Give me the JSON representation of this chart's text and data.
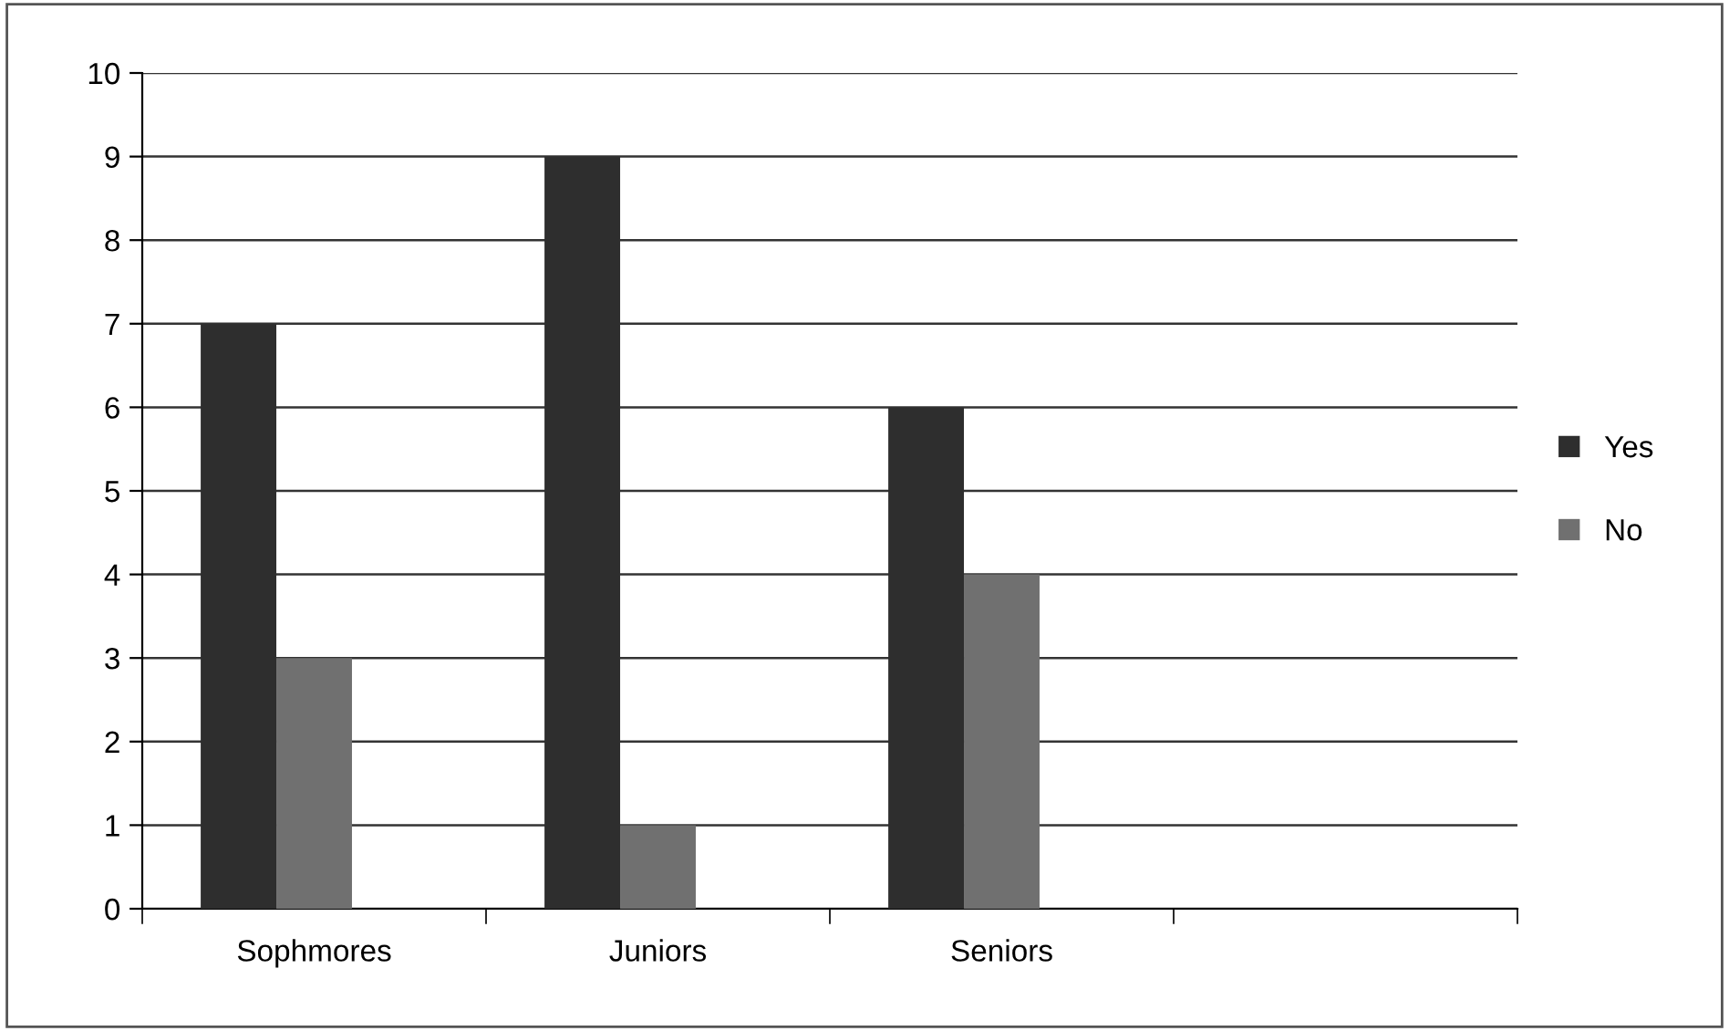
{
  "chart_data": {
    "type": "bar",
    "categories": [
      "Sophmores",
      "Juniors",
      "Seniors",
      null
    ],
    "series": [
      {
        "name": "Yes",
        "color": "#2e2e2e",
        "values": [
          7,
          9,
          6,
          null
        ]
      },
      {
        "name": "No",
        "color": "#707070",
        "values": [
          3,
          1,
          4,
          null
        ]
      }
    ],
    "ylim": [
      0,
      10
    ],
    "yticks": [
      0,
      1,
      2,
      3,
      4,
      5,
      6,
      7,
      8,
      9,
      10
    ],
    "grid": "y",
    "legend": "right"
  }
}
